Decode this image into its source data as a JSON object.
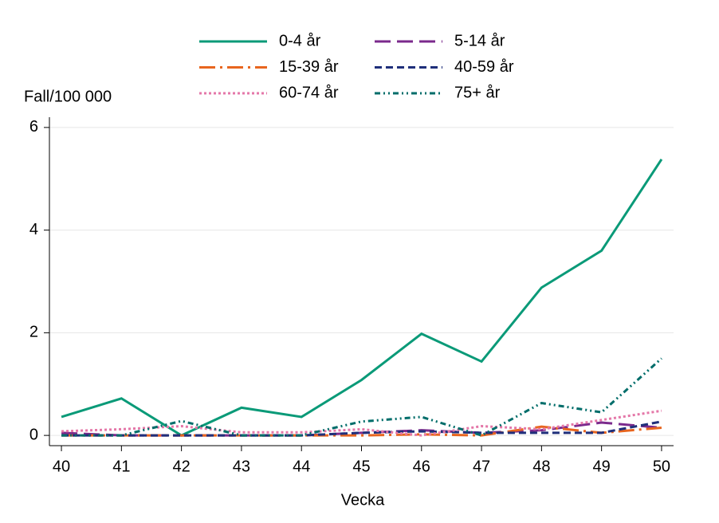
{
  "chart_data": {
    "type": "line",
    "y_label": "Fall/100 000",
    "x_label": "Vecka",
    "x": [
      40,
      41,
      42,
      43,
      44,
      45,
      46,
      47,
      48,
      49,
      50
    ],
    "series": [
      {
        "name": "0-4 år",
        "color": "#0a9a78",
        "dash": "solid",
        "values": [
          0.36,
          0.72,
          0.0,
          0.54,
          0.36,
          1.08,
          1.98,
          1.44,
          2.88,
          3.6,
          5.38
        ]
      },
      {
        "name": "5-14 år",
        "color": "#7b2a8c",
        "dash": "long-dash",
        "values": [
          0.05,
          0.0,
          0.0,
          0.0,
          0.0,
          0.05,
          0.1,
          0.05,
          0.1,
          0.25,
          0.15
        ]
      },
      {
        "name": "15-39 år",
        "color": "#e8661f",
        "dash": "dash-dot",
        "values": [
          0.0,
          0.0,
          0.0,
          0.0,
          0.0,
          0.0,
          0.02,
          0.0,
          0.17,
          0.05,
          0.15
        ]
      },
      {
        "name": "40-59 år",
        "color": "#1f2f7a",
        "dash": "dash",
        "values": [
          0.0,
          0.0,
          0.0,
          0.0,
          0.0,
          0.05,
          0.08,
          0.05,
          0.05,
          0.05,
          0.27
        ]
      },
      {
        "name": "60-74 år",
        "color": "#e477a8",
        "dash": "dot",
        "values": [
          0.08,
          0.12,
          0.18,
          0.06,
          0.06,
          0.12,
          0.0,
          0.18,
          0.12,
          0.3,
          0.48
        ]
      },
      {
        "name": "75+ år",
        "color": "#006d6a",
        "dash": "dash-dot-dot",
        "values": [
          0.0,
          0.0,
          0.28,
          0.0,
          0.0,
          0.27,
          0.36,
          0.0,
          0.63,
          0.45,
          1.5
        ]
      }
    ],
    "xlim": [
      39.8,
      50.2
    ],
    "xticks": [
      40,
      41,
      42,
      43,
      44,
      45,
      46,
      47,
      48,
      49,
      50
    ],
    "ylim": [
      -0.2,
      6.2
    ],
    "yticks": [
      0,
      2,
      4,
      6
    ],
    "grid": true,
    "legend": "top"
  }
}
